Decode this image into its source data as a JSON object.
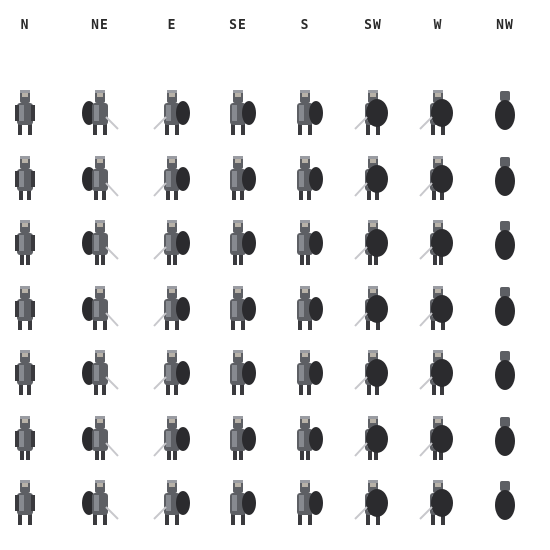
{
  "directions": [
    "N",
    "NE",
    "E",
    "SE",
    "S",
    "SW",
    "W",
    "NW"
  ],
  "frame_count": 7,
  "colors": {
    "background": "#ffffff",
    "label": "#2a2a2a",
    "armor_dark": "#3a3a3e",
    "armor_mid": "#5d5f64",
    "armor_light": "#9a9ca2",
    "shield": "#2b2b2e",
    "skin": "#b8b2a8",
    "sword": "#c8c8cc"
  }
}
